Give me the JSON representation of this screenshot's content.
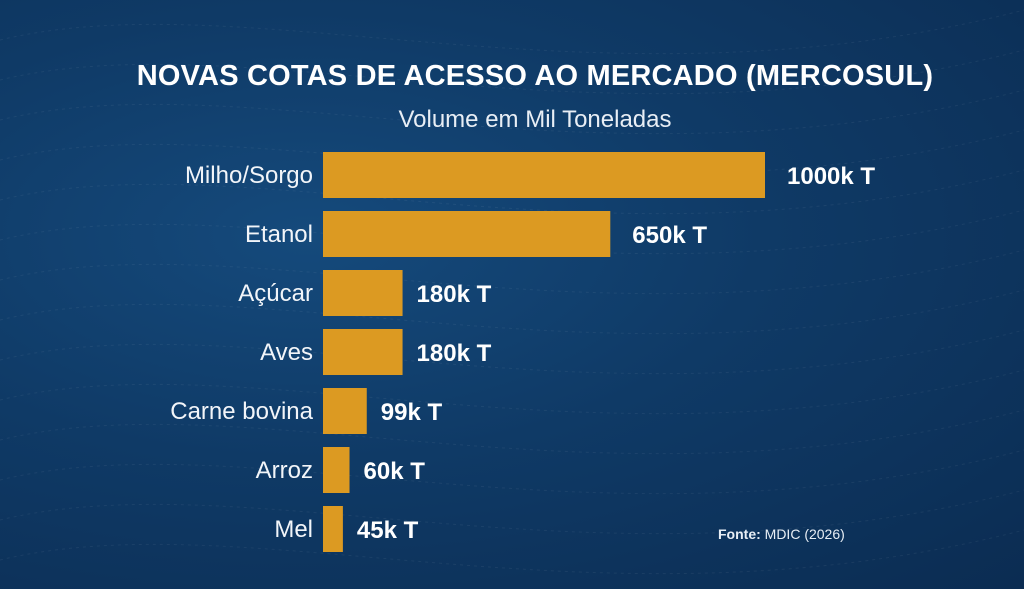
{
  "chart_data": {
    "type": "bar",
    "orientation": "horizontal",
    "title": "NOVAS COTAS DE ACESSO AO MERCADO (MERCOSUL)",
    "subtitle": "Volume em Mil Toneladas",
    "categories": [
      "Milho/Sorgo",
      "Etanol",
      "Açúcar",
      "Aves",
      "Carne bovina",
      "Arroz",
      "Mel"
    ],
    "values": [
      1000,
      650,
      180,
      180,
      99,
      60,
      45
    ],
    "data_labels": [
      "1000k T",
      "650k T",
      "180k T",
      "180k T",
      "99k T",
      "60k T",
      "45k T"
    ],
    "xlim": [
      0,
      1000
    ],
    "grid": false,
    "bar_color": "#DC9A22",
    "background_color": "#0F3A66"
  },
  "source": {
    "label": "Fonte:",
    "value": "MDIC (2026)"
  }
}
